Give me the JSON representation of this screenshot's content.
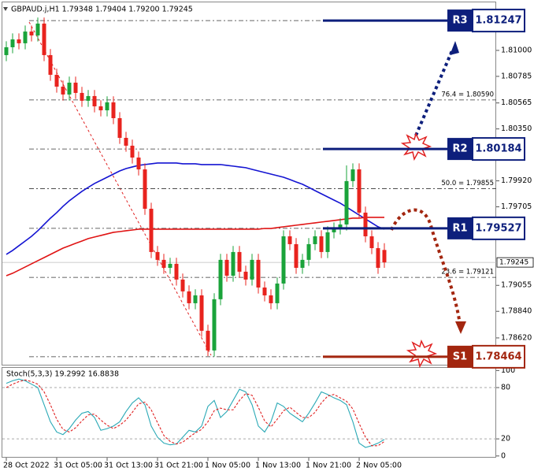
{
  "chart_data": [
    {
      "type": "candlestick",
      "title": "GBPAUD.j,H1  1.79348 1.79404 1.79200 1.79245",
      "categories": [
        "28 Oct 2022",
        null,
        null,
        null,
        null,
        null,
        null,
        null,
        "31 Oct 05:00",
        null,
        null,
        null,
        null,
        null,
        null,
        null,
        "31 Oct 13:00",
        null,
        null,
        null,
        null,
        null,
        null,
        null,
        "31 Oct 21:00",
        null,
        null,
        null,
        null,
        null,
        null,
        null,
        "1 Nov 05:00",
        null,
        null,
        null,
        null,
        null,
        null,
        null,
        "1 Nov 13:00",
        null,
        null,
        null,
        null,
        null,
        null,
        null,
        "1 Nov 21:00",
        null,
        null,
        null,
        null,
        null,
        null,
        null,
        "2 Nov 05:00",
        null,
        null,
        null,
        null
      ],
      "open": [
        1.80961,
        1.81026,
        1.81091,
        1.81059,
        1.81156,
        1.81124,
        1.81222,
        1.80961,
        1.80798,
        1.807,
        1.80635,
        1.80733,
        1.80648,
        1.80583,
        1.80622,
        1.80537,
        1.80504,
        1.8057,
        1.80439,
        1.80276,
        1.80211,
        1.80113,
        1.80015,
        1.79689,
        1.79331,
        1.79266,
        1.792,
        1.79233,
        1.79103,
        1.79005,
        1.78907,
        1.78972,
        1.78679,
        1.78516,
        1.7894,
        1.79266,
        1.79135,
        1.79331,
        1.79168,
        1.79103,
        1.79266,
        1.79037,
        1.78972,
        1.78907,
        1.7907,
        1.79461,
        1.79396,
        1.792,
        1.79266,
        1.79396,
        1.79461,
        1.79331,
        1.79494,
        1.79526,
        1.79559,
        1.79918,
        1.80015,
        1.79657,
        1.79461,
        1.79363,
        1.79348
      ],
      "high": [
        1.81076,
        1.81141,
        1.81141,
        1.81206,
        1.81206,
        1.81272,
        1.81272,
        1.81011,
        1.80848,
        1.8075,
        1.80783,
        1.80783,
        1.80698,
        1.80672,
        1.80672,
        1.80587,
        1.8062,
        1.8062,
        1.80489,
        1.80326,
        1.80261,
        1.80163,
        1.80065,
        1.79739,
        1.79381,
        1.79316,
        1.79283,
        1.79283,
        1.79153,
        1.79055,
        1.79022,
        1.79022,
        1.78729,
        1.7899,
        1.79316,
        1.79316,
        1.79381,
        1.79381,
        1.79218,
        1.79316,
        1.79316,
        1.79087,
        1.79022,
        1.7912,
        1.79511,
        1.79511,
        1.79446,
        1.79316,
        1.79446,
        1.79511,
        1.79511,
        1.79544,
        1.79576,
        1.79609,
        1.80048,
        1.80065,
        1.80065,
        1.79707,
        1.79511,
        1.79413,
        1.79404
      ],
      "low": [
        1.80911,
        1.80976,
        1.81009,
        1.81009,
        1.81074,
        1.81074,
        1.80911,
        1.80748,
        1.8065,
        1.80585,
        1.80585,
        1.80598,
        1.80533,
        1.80533,
        1.80487,
        1.80454,
        1.80454,
        1.80389,
        1.80226,
        1.80161,
        1.80063,
        1.79965,
        1.79639,
        1.79281,
        1.79216,
        1.7915,
        1.7915,
        1.79053,
        1.78955,
        1.78857,
        1.78857,
        1.78629,
        1.7847,
        1.78466,
        1.7889,
        1.79085,
        1.79085,
        1.79118,
        1.79053,
        1.79053,
        1.78987,
        1.78922,
        1.78857,
        1.78857,
        1.7902,
        1.79346,
        1.7915,
        1.7915,
        1.79216,
        1.79346,
        1.79281,
        1.79281,
        1.79444,
        1.79476,
        1.79509,
        1.79868,
        1.79607,
        1.79411,
        1.79313,
        1.7915,
        1.792
      ],
      "close": [
        1.81026,
        1.81091,
        1.81059,
        1.81156,
        1.81124,
        1.81222,
        1.80961,
        1.80798,
        1.807,
        1.80635,
        1.80733,
        1.80648,
        1.80583,
        1.80622,
        1.80537,
        1.80504,
        1.8057,
        1.80439,
        1.80276,
        1.80211,
        1.80113,
        1.80015,
        1.79689,
        1.79331,
        1.79266,
        1.792,
        1.79233,
        1.79103,
        1.79005,
        1.78907,
        1.78972,
        1.78679,
        1.78516,
        1.7894,
        1.79266,
        1.79135,
        1.79331,
        1.79168,
        1.79103,
        1.79266,
        1.79037,
        1.78972,
        1.78907,
        1.7907,
        1.79461,
        1.79396,
        1.792,
        1.79266,
        1.79396,
        1.79461,
        1.79331,
        1.79494,
        1.79526,
        1.79559,
        1.79918,
        1.80015,
        1.79657,
        1.79461,
        1.79363,
        1.792,
        1.79245
      ],
      "bull_color": "#1aa33a",
      "bear_color": "#e8231e",
      "lines": [
        {
          "color": "#1414d2",
          "values": [
            1.79311,
            1.79344,
            1.79383,
            1.79422,
            1.79461,
            1.79507,
            1.79559,
            1.79611,
            1.79657,
            1.79709,
            1.79755,
            1.79794,
            1.79833,
            1.79866,
            1.79898,
            1.79924,
            1.7995,
            1.79976,
            1.80002,
            1.80022,
            1.80035,
            1.80048,
            1.80055,
            1.80061,
            1.80068,
            1.80068,
            1.80068,
            1.80068,
            1.80061,
            1.80061,
            1.80061,
            1.80055,
            1.80055,
            1.80055,
            1.80055,
            1.80048,
            1.80042,
            1.80035,
            1.80029,
            1.80015,
            1.80002,
            1.79989,
            1.79976,
            1.79963,
            1.7995,
            1.79931,
            1.79911,
            1.79892,
            1.79866,
            1.79839,
            1.79813,
            1.79787,
            1.79761,
            1.79735,
            1.79703,
            1.7967,
            1.79637,
            1.79605,
            1.79572,
            1.7954,
            1.7952
          ]
        },
        {
          "color": "#e01414",
          "values": [
            1.79135,
            1.79155,
            1.79181,
            1.79207,
            1.79233,
            1.79259,
            1.79285,
            1.79311,
            1.79337,
            1.79363,
            1.79383,
            1.79403,
            1.79422,
            1.79442,
            1.79455,
            1.79468,
            1.79481,
            1.79494,
            1.795,
            1.79507,
            1.79513,
            1.7952,
            1.7952,
            1.7952,
            1.7952,
            1.7952,
            1.7952,
            1.7952,
            1.7952,
            1.7952,
            1.7952,
            1.7952,
            1.7952,
            1.7952,
            1.7952,
            1.7952,
            1.7952,
            1.7952,
            1.7952,
            1.7952,
            1.7952,
            1.79526,
            1.79526,
            1.79533,
            1.7954,
            1.79546,
            1.79553,
            1.79559,
            1.79566,
            1.79572,
            1.79579,
            1.79585,
            1.79592,
            1.79598,
            1.79605,
            1.79611,
            1.79611,
            1.79618,
            1.79618,
            1.79618,
            1.79618
          ]
        }
      ],
      "ylim": [
        1.78398,
        1.81365
      ],
      "yticks": [
        {
          "value": 1.81,
          "label": "1.81000"
        },
        1.80785,
        1.80565,
        {
          "value": 1.8035,
          "label": "1.80350"
        },
        {
          "value": 1.7992,
          "label": "1.79920"
        },
        1.79705,
        1.79055,
        {
          "value": 1.7884,
          "label": "1.78840"
        },
        {
          "value": 1.7862,
          "label": "1.78620"
        }
      ],
      "fib_lines": [
        1.81247,
        1.8059,
        1.80184,
        1.79855,
        1.79527,
        1.79121,
        1.78464
      ],
      "fib_labels": [
        {
          "value": 1.8059,
          "label": "76.4 = 1.80590"
        },
        {
          "value": 1.79855,
          "label": "50.0 = 1.79855"
        },
        {
          "value": 1.79121,
          "label": "23.6 = 1.79121"
        }
      ],
      "levels": [
        {
          "name": "R3",
          "value": 1.81247,
          "color": "#0d1f7c"
        },
        {
          "name": "R2",
          "value": 1.80184,
          "color": "#0d1f7c"
        },
        {
          "name": "R1",
          "value": 1.79527,
          "color": "#0d1f7c"
        },
        {
          "name": "S1",
          "value": 1.78464,
          "color": "#a3260f"
        }
      ],
      "last": 1.79245
    },
    {
      "type": "line",
      "title": "Stoch(5,3,3) 19.2992 16.8838",
      "ylim": [
        -2,
        104
      ],
      "yticks": [
        0,
        20,
        80,
        100
      ],
      "levels": [
        20,
        80
      ],
      "series": [
        {
          "color": "#2aa9b6",
          "dash": false,
          "values": [
            85,
            88,
            90,
            88,
            84,
            80,
            60,
            40,
            28,
            25,
            32,
            42,
            50,
            52,
            45,
            30,
            32,
            35,
            40,
            52,
            62,
            68,
            60,
            35,
            22,
            15,
            13,
            14,
            22,
            30,
            28,
            35,
            58,
            65,
            45,
            52,
            65,
            78,
            75,
            60,
            35,
            28,
            40,
            62,
            58,
            50,
            45,
            40,
            50,
            62,
            75,
            72,
            68,
            65,
            60,
            40,
            15,
            10,
            12,
            15,
            19.2992
          ]
        },
        {
          "color": "#e02020",
          "dash": true,
          "values": [
            80,
            84,
            87,
            89,
            87,
            84,
            75,
            60,
            43,
            31,
            28,
            33,
            41,
            48,
            49,
            42,
            36,
            32,
            36,
            42,
            51,
            61,
            63,
            54,
            39,
            24,
            17,
            14,
            16,
            22,
            27,
            31,
            40,
            53,
            56,
            54,
            54,
            65,
            73,
            71,
            57,
            41,
            34,
            43,
            53,
            57,
            51,
            45,
            45,
            51,
            62,
            70,
            72,
            68,
            64,
            55,
            38,
            22,
            12,
            12,
            16.8838
          ]
        }
      ]
    }
  ]
}
